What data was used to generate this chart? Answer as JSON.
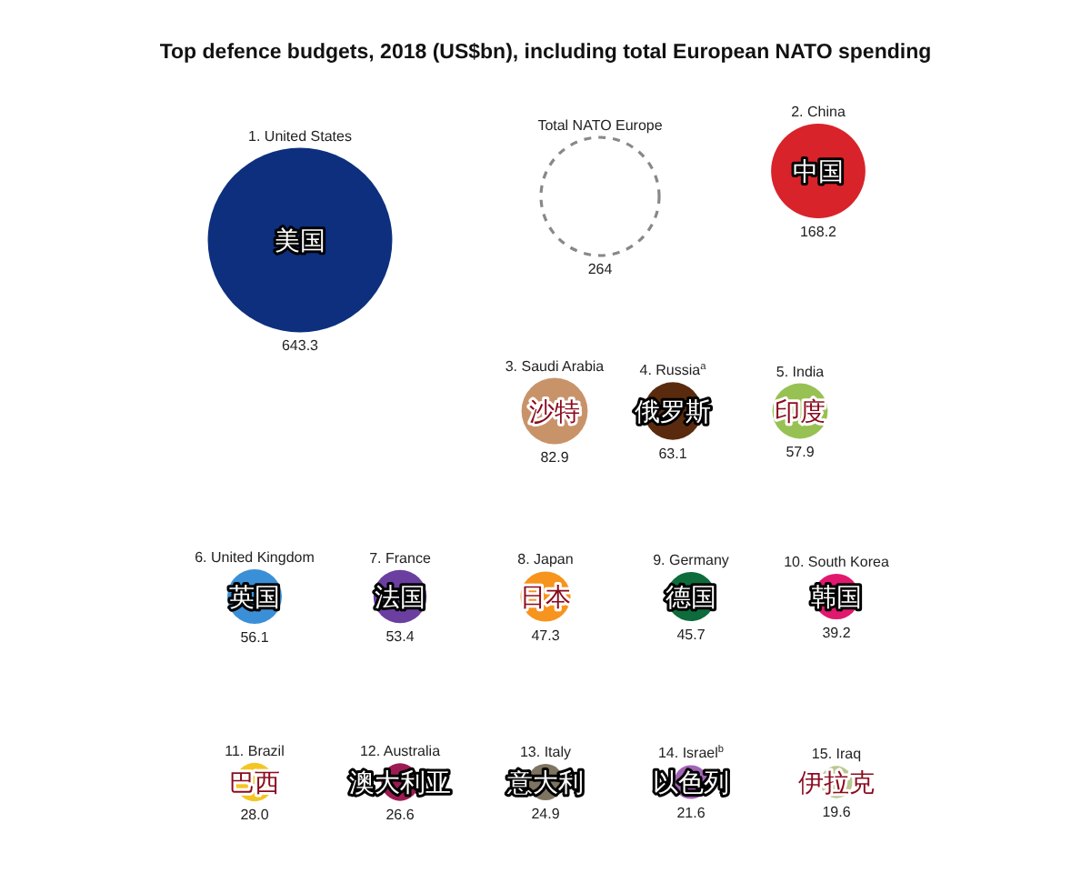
{
  "chart_data": {
    "type": "other",
    "title": "Top defence budgets, 2018 (US$bn), including total European NATO spending",
    "categories": [
      "1. United States",
      "Total NATO Europe",
      "2. China",
      "3. Saudi Arabia",
      "4. Russia$^{a}$",
      "5. India",
      "6. United Kingdom",
      "7. France",
      "8. Japan",
      "9. Germany",
      "10. South Korea",
      "11. Brazil",
      "12. Australia",
      "13. Italy",
      "14. Israel$^{b}$",
      "15. Iraq"
    ],
    "values": [
      643.3,
      264,
      168.2,
      82.9,
      63.1,
      57.9,
      56.1,
      53.4,
      47.3,
      45.7,
      39.2,
      28.0,
      26.6,
      24.9,
      21.6,
      19.6
    ],
    "value_labels": [
      "643.3",
      "264",
      "168.2",
      "82.9",
      "63.1",
      "57.9",
      "56.1",
      "53.4",
      "47.3",
      "45.7",
      "39.2",
      "28.0",
      "26.6",
      "24.9",
      "21.6",
      "19.6"
    ],
    "colors": [
      "#0d2f7e",
      null,
      "#d8232a",
      "#c9936a",
      "#5a2a0e",
      "#98c153",
      "#3b8fd6",
      "#6a3fa0",
      "#f7941d",
      "#0e6b3c",
      "#e0196e",
      "#f3c623",
      "#9c1b52",
      "#7f7461",
      "#a263b5",
      "#b9c88e"
    ],
    "annotations": [
      {
        "text": "美国",
        "x": "1. United States"
      },
      {
        "text": "中国",
        "x": "2. China"
      },
      {
        "text": "沙特",
        "x": "3. Saudi Arabia"
      },
      {
        "text": "俄罗斯",
        "x": "4. Russia$^{a}$"
      },
      {
        "text": "印度",
        "x": "5. India"
      },
      {
        "text": "英国",
        "x": "6. United Kingdom"
      },
      {
        "text": "法国",
        "x": "7. France"
      },
      {
        "text": "日本",
        "x": "8. Japan"
      },
      {
        "text": "德国",
        "x": "9. Germany"
      },
      {
        "text": "韩国",
        "x": "10. South Korea"
      },
      {
        "text": "巴西",
        "x": "11. Brazil"
      },
      {
        "text": "澳大利亚",
        "x": "12. Australia"
      },
      {
        "text": "意大利",
        "x": "13. Italy"
      },
      {
        "text": "以色列",
        "x": "14. Israel$^{b}$"
      },
      {
        "text": "伊拉克",
        "x": "15. Iraq"
      }
    ]
  }
}
